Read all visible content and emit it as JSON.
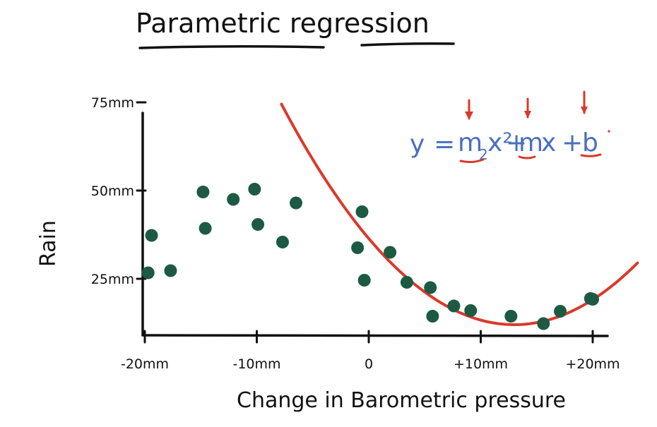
{
  "title": "Parametric regression",
  "equation": {
    "lhs": "y",
    "eq": "=",
    "m2": "m",
    "sub2": "2",
    "x2": "x²",
    "plus1": "+",
    "m": "m",
    "x": "x",
    "plus2": "+",
    "b": "b",
    "text_color": "#4a6fc0",
    "highlight_color": "#d93a2b"
  },
  "colors": {
    "points": "#1d5a43",
    "curve": "#d93a2b",
    "axes": "#111111"
  },
  "chart_data": {
    "type": "scatter",
    "title": "Parametric regression",
    "xlabel": "Change in Barometric pressure",
    "ylabel": "Rain",
    "xlim": [
      -22,
      22
    ],
    "ylim": [
      10,
      76
    ],
    "x_ticks": [
      {
        "value": -20,
        "label": "-20mm"
      },
      {
        "value": -10,
        "label": "-10mm"
      },
      {
        "value": 0,
        "label": "0"
      },
      {
        "value": 10,
        "label": "+10mm"
      },
      {
        "value": 20,
        "label": "+20mm"
      }
    ],
    "y_ticks": [
      {
        "value": 25,
        "label": "25mm"
      },
      {
        "value": 50,
        "label": "50mm"
      },
      {
        "value": 75,
        "label": "75mm"
      }
    ],
    "points": [
      {
        "x": -19.4,
        "y": 37.3
      },
      {
        "x": -19.7,
        "y": 26.7
      },
      {
        "x": -17.7,
        "y": 27.3
      },
      {
        "x": -14.8,
        "y": 49.6
      },
      {
        "x": -14.6,
        "y": 39.3
      },
      {
        "x": -12.1,
        "y": 47.5
      },
      {
        "x": -10.2,
        "y": 50.4
      },
      {
        "x": -9.9,
        "y": 40.4
      },
      {
        "x": -7.7,
        "y": 35.4
      },
      {
        "x": -6.5,
        "y": 46.5
      },
      {
        "x": -0.6,
        "y": 44.0
      },
      {
        "x": -1.0,
        "y": 33.8
      },
      {
        "x": -0.4,
        "y": 24.6
      },
      {
        "x": 1.9,
        "y": 32.5
      },
      {
        "x": 3.4,
        "y": 24.0
      },
      {
        "x": 5.5,
        "y": 22.5
      },
      {
        "x": 5.7,
        "y": 14.4
      },
      {
        "x": 7.6,
        "y": 17.3
      },
      {
        "x": 9.1,
        "y": 16.0
      },
      {
        "x": 12.7,
        "y": 14.4
      },
      {
        "x": 15.6,
        "y": 12.3
      },
      {
        "x": 17.1,
        "y": 15.8
      },
      {
        "x": 19.8,
        "y": 19.4
      },
      {
        "x": 20.0,
        "y": 19.2
      }
    ],
    "fit": {
      "type": "quadratic",
      "x_start": -7.8,
      "x_end": 24.0
    },
    "grid": false,
    "legend": false
  }
}
